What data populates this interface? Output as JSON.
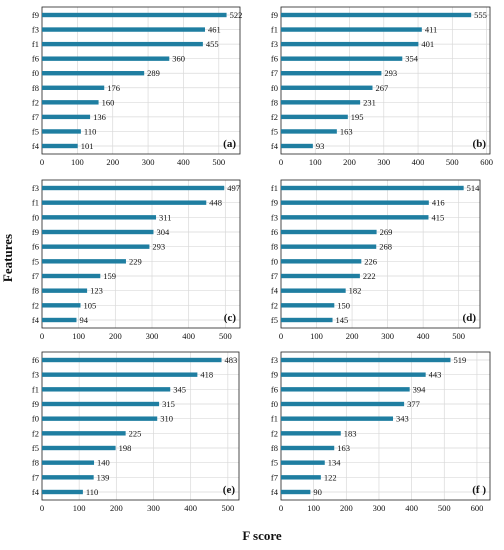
{
  "figure": {
    "ylabel": "Features",
    "xlabel": "F score",
    "bar_color": "#1f7ea1",
    "grid_color": "#d9d9d9"
  },
  "chart_data": [
    {
      "type": "bar",
      "orientation": "horizontal",
      "panel_label": "(a)",
      "categories": [
        "f9",
        "f3",
        "f1",
        "f6",
        "f0",
        "f8",
        "f2",
        "f7",
        "f5",
        "f4"
      ],
      "values": [
        522,
        461,
        455,
        360,
        289,
        176,
        160,
        136,
        110,
        101
      ],
      "xlim": [
        0,
        560
      ],
      "xticks": [
        0,
        100,
        200,
        300,
        400,
        500
      ],
      "grid": true
    },
    {
      "type": "bar",
      "orientation": "horizontal",
      "panel_label": "(b)",
      "categories": [
        "f9",
        "f1",
        "f3",
        "f6",
        "f7",
        "f0",
        "f8",
        "f2",
        "f5",
        "f4"
      ],
      "values": [
        555,
        411,
        401,
        354,
        293,
        267,
        231,
        195,
        163,
        93
      ],
      "xlim": [
        0,
        610
      ],
      "xticks": [
        0,
        100,
        200,
        300,
        400,
        500,
        600
      ],
      "grid": true
    },
    {
      "type": "bar",
      "orientation": "horizontal",
      "panel_label": "(c)",
      "categories": [
        "f3",
        "f1",
        "f0",
        "f9",
        "f6",
        "f5",
        "f7",
        "f8",
        "f2",
        "f4"
      ],
      "values": [
        497,
        448,
        311,
        304,
        293,
        229,
        159,
        123,
        105,
        94
      ],
      "xlim": [
        0,
        540
      ],
      "xticks": [
        0,
        100,
        200,
        300,
        400,
        500
      ],
      "grid": true
    },
    {
      "type": "bar",
      "orientation": "horizontal",
      "panel_label": "(d)",
      "categories": [
        "f1",
        "f9",
        "f3",
        "f6",
        "f8",
        "f0",
        "f7",
        "f4",
        "f2",
        "f5"
      ],
      "values": [
        514,
        416,
        415,
        269,
        268,
        226,
        222,
        182,
        150,
        145
      ],
      "xlim": [
        0,
        560
      ],
      "xticks": [
        0,
        100,
        200,
        300,
        400,
        500
      ],
      "grid": true
    },
    {
      "type": "bar",
      "orientation": "horizontal",
      "panel_label": "(e)",
      "categories": [
        "f6",
        "f3",
        "f1",
        "f9",
        "f0",
        "f2",
        "f5",
        "f8",
        "f7",
        "f4"
      ],
      "values": [
        483,
        418,
        345,
        315,
        310,
        225,
        198,
        140,
        139,
        110
      ],
      "xlim": [
        0,
        530
      ],
      "xticks": [
        0,
        100,
        200,
        300,
        400,
        500
      ],
      "grid": true
    },
    {
      "type": "bar",
      "orientation": "horizontal",
      "panel_label": "(f )",
      "categories": [
        "f3",
        "f9",
        "f6",
        "f0",
        "f1",
        "f2",
        "f8",
        "f5",
        "f7",
        "f4"
      ],
      "values": [
        519,
        443,
        394,
        377,
        343,
        183,
        163,
        134,
        122,
        90
      ],
      "xlim": [
        0,
        640
      ],
      "xticks": [
        0,
        100,
        200,
        300,
        400,
        500,
        600
      ],
      "grid": true
    }
  ]
}
